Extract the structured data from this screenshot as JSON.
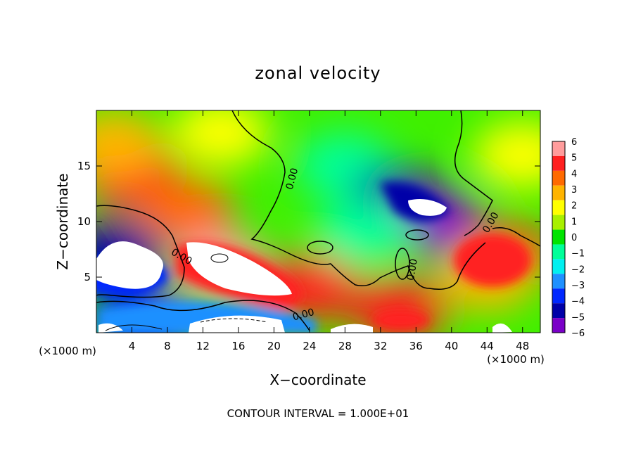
{
  "chart_data": {
    "type": "heatmap",
    "title": "zonal velocity",
    "xlabel": "X−coordinate",
    "ylabel": "Z−coordinate",
    "x_unit": "(×1000 m)",
    "z_unit": "(×1000 m)",
    "xlim": [
      0,
      50
    ],
    "ylim": [
      0,
      20
    ],
    "x_ticks": [
      "4",
      "8",
      "12",
      "16",
      "20",
      "24",
      "28",
      "32",
      "36",
      "40",
      "44",
      "48"
    ],
    "y_ticks": [
      "5",
      "10",
      "15"
    ],
    "x_tick_values": [
      4,
      8,
      12,
      16,
      20,
      24,
      28,
      32,
      36,
      40,
      44,
      48
    ],
    "y_tick_values": [
      5,
      10,
      15
    ],
    "colorbar": {
      "labels": [
        "6",
        "5",
        "4",
        "3",
        "2",
        "1",
        "0",
        "−1",
        "−2",
        "−3",
        "−4",
        "−5",
        "−6"
      ],
      "values": [
        6,
        5,
        4,
        3,
        2,
        1,
        0,
        -1,
        -2,
        -3,
        -4,
        -5,
        -6
      ],
      "colors": [
        "#ff9c9c",
        "#ff2020",
        "#ff6a00",
        "#ffb400",
        "#ffff00",
        "#a8f000",
        "#00e400",
        "#00ff99",
        "#00f0f0",
        "#1e90ff",
        "#0028ff",
        "#0000a8",
        "#7a00c8"
      ]
    },
    "contour_labels": [
      "0.00",
      "0.00",
      "0.00",
      "0.00",
      "0.00"
    ],
    "footer": "CONTOUR INTERVAL = 1.000E+01",
    "regions": [
      {
        "x": 4,
        "z": 14,
        "u": 4.5
      },
      {
        "x": 10,
        "z": 11,
        "u": 4
      },
      {
        "x": 2,
        "z": 17,
        "u": 3
      },
      {
        "x": 14,
        "z": 18,
        "u": 2
      },
      {
        "x": 28,
        "z": 15,
        "u": -1.5
      },
      {
        "x": 34,
        "z": 12,
        "u": -5
      },
      {
        "x": 38,
        "z": 10,
        "u": -6
      },
      {
        "x": 46,
        "z": 7,
        "u": 4.5
      },
      {
        "x": 44,
        "z": 5,
        "u": 3
      },
      {
        "x": 2,
        "z": 7,
        "u": -5
      },
      {
        "x": 14,
        "z": 6,
        "u": 6
      },
      {
        "x": 24,
        "z": 4,
        "u": 5
      },
      {
        "x": 34,
        "z": 2,
        "u": 5
      },
      {
        "x": 5,
        "z": 1,
        "u": -4
      },
      {
        "x": 30,
        "z": 9,
        "u": -1.5
      },
      {
        "x": 48,
        "z": 16,
        "u": 2
      }
    ]
  }
}
